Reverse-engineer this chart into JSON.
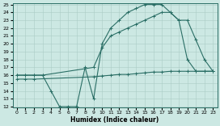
{
  "xlabel": "Humidex (Indice chaleur)",
  "bg_color": "#cce8e3",
  "line_color": "#2a6e65",
  "grid_color": "#aaccc6",
  "ylim": [
    12,
    25
  ],
  "xlim": [
    -0.5,
    23.5
  ],
  "yticks": [
    12,
    13,
    14,
    15,
    16,
    17,
    18,
    19,
    20,
    21,
    22,
    23,
    24,
    25
  ],
  "xticks": [
    0,
    1,
    2,
    3,
    4,
    5,
    6,
    7,
    8,
    9,
    10,
    11,
    12,
    13,
    14,
    15,
    16,
    17,
    18,
    19,
    20,
    21,
    22,
    23
  ],
  "line1_x": [
    0,
    1,
    2,
    3,
    4,
    5,
    6,
    7,
    8,
    9,
    10,
    11,
    12,
    13,
    14,
    15,
    16,
    17,
    18,
    19,
    20,
    21,
    22,
    23
  ],
  "line1_y": [
    16,
    16,
    16,
    16,
    14,
    12,
    12,
    12,
    17,
    13,
    20,
    22,
    23,
    24,
    24.5,
    25,
    25,
    25,
    24,
    23,
    18,
    16.5,
    16.5,
    16.5
  ],
  "line2_x": [
    0,
    1,
    2,
    3,
    9,
    10,
    11,
    12,
    13,
    14,
    15,
    16,
    17,
    18,
    19,
    20,
    21,
    22,
    23
  ],
  "line2_y": [
    16,
    16,
    16,
    16,
    17,
    19.5,
    21,
    21.5,
    22,
    22.5,
    23,
    23.5,
    24,
    24,
    23,
    23,
    20.5,
    18,
    16.5
  ],
  "line3_x": [
    0,
    1,
    2,
    9,
    10,
    11,
    12,
    13,
    14,
    15,
    16,
    17,
    18,
    19,
    20,
    21,
    22,
    23
  ],
  "line3_y": [
    15.5,
    15.5,
    15.5,
    15.8,
    15.9,
    16.0,
    16.1,
    16.1,
    16.2,
    16.3,
    16.4,
    16.4,
    16.5,
    16.5,
    16.5,
    16.5,
    16.5,
    16.5
  ]
}
